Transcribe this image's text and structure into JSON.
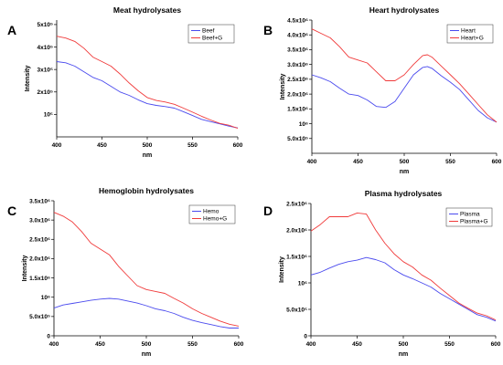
{
  "colors": {
    "series1": "#4a4aee",
    "series2": "#f03a3a"
  },
  "chart_data": [
    {
      "panel": "A",
      "type": "line",
      "title": "Meat hydrolysates",
      "xlabel": "nm",
      "ylabel": "Intensity",
      "xlim": [
        400,
        600
      ],
      "ylim": [
        0,
        520000
      ],
      "x_ticks": [
        "400",
        "450",
        "500",
        "550",
        "600"
      ],
      "y_ticks": [
        {
          "label": "10⁵",
          "value": 100000
        },
        {
          "label": "2x10⁵",
          "value": 200000
        },
        {
          "label": "3x10⁵",
          "value": 300000
        },
        {
          "label": "4x10⁵",
          "value": 400000
        },
        {
          "label": "5x10⁵",
          "value": 500000
        }
      ],
      "legend_position": "top-right",
      "series": [
        {
          "name": "Beef",
          "color": "#4a4aee",
          "points": [
            [
              400,
              335000
            ],
            [
              410,
              330000
            ],
            [
              420,
              315000
            ],
            [
              430,
              290000
            ],
            [
              440,
              265000
            ],
            [
              450,
              250000
            ],
            [
              460,
              225000
            ],
            [
              470,
              200000
            ],
            [
              480,
              185000
            ],
            [
              490,
              165000
            ],
            [
              500,
              148000
            ],
            [
              510,
              140000
            ],
            [
              520,
              135000
            ],
            [
              530,
              128000
            ],
            [
              540,
              112000
            ],
            [
              550,
              95000
            ],
            [
              560,
              78000
            ],
            [
              570,
              68000
            ],
            [
              580,
              58000
            ],
            [
              590,
              48000
            ],
            [
              600,
              40000
            ]
          ]
        },
        {
          "name": "Beef+G",
          "color": "#f03a3a",
          "points": [
            [
              400,
              448000
            ],
            [
              410,
              440000
            ],
            [
              420,
              425000
            ],
            [
              430,
              395000
            ],
            [
              440,
              355000
            ],
            [
              450,
              335000
            ],
            [
              460,
              315000
            ],
            [
              470,
              280000
            ],
            [
              480,
              240000
            ],
            [
              490,
              205000
            ],
            [
              500,
              175000
            ],
            [
              510,
              162000
            ],
            [
              520,
              155000
            ],
            [
              530,
              145000
            ],
            [
              540,
              128000
            ],
            [
              550,
              110000
            ],
            [
              560,
              92000
            ],
            [
              570,
              75000
            ],
            [
              580,
              60000
            ],
            [
              590,
              52000
            ],
            [
              600,
              38000
            ]
          ]
        }
      ]
    },
    {
      "panel": "B",
      "type": "line",
      "title": "Heart hydrolysates",
      "xlabel": "nm",
      "ylabel": "Intensity",
      "xlim": [
        400,
        600
      ],
      "ylim": [
        0,
        4500000
      ],
      "x_ticks": [
        "400",
        "450",
        "500",
        "550",
        "600"
      ],
      "y_ticks": [
        {
          "label": "5.0x10⁵",
          "value": 500000
        },
        {
          "label": "10⁶",
          "value": 1000000
        },
        {
          "label": "1.5x10⁶",
          "value": 1500000
        },
        {
          "label": "2.0x10⁶",
          "value": 2000000
        },
        {
          "label": "2.5x10⁶",
          "value": 2500000
        },
        {
          "label": "3.0x10⁶",
          "value": 3000000
        },
        {
          "label": "3.5x10⁶",
          "value": 3500000
        },
        {
          "label": "4.0x10⁶",
          "value": 4000000
        },
        {
          "label": "4.5x10⁶",
          "value": 4500000
        }
      ],
      "legend_position": "top-right",
      "series": [
        {
          "name": "Heart",
          "color": "#4a4aee",
          "points": [
            [
              400,
              2650000
            ],
            [
              410,
              2550000
            ],
            [
              420,
              2420000
            ],
            [
              430,
              2200000
            ],
            [
              440,
              2000000
            ],
            [
              450,
              1950000
            ],
            [
              460,
              1800000
            ],
            [
              470,
              1580000
            ],
            [
              480,
              1550000
            ],
            [
              490,
              1750000
            ],
            [
              500,
              2200000
            ],
            [
              510,
              2650000
            ],
            [
              520,
              2900000
            ],
            [
              525,
              2930000
            ],
            [
              530,
              2870000
            ],
            [
              540,
              2620000
            ],
            [
              550,
              2400000
            ],
            [
              560,
              2150000
            ],
            [
              570,
              1800000
            ],
            [
              580,
              1450000
            ],
            [
              590,
              1200000
            ],
            [
              600,
              1050000
            ]
          ]
        },
        {
          "name": "Heart+G",
          "color": "#f03a3a",
          "points": [
            [
              400,
              4200000
            ],
            [
              410,
              4050000
            ],
            [
              420,
              3900000
            ],
            [
              430,
              3600000
            ],
            [
              440,
              3250000
            ],
            [
              450,
              3150000
            ],
            [
              460,
              3050000
            ],
            [
              470,
              2750000
            ],
            [
              480,
              2450000
            ],
            [
              490,
              2450000
            ],
            [
              500,
              2650000
            ],
            [
              510,
              3000000
            ],
            [
              520,
              3300000
            ],
            [
              525,
              3330000
            ],
            [
              530,
              3250000
            ],
            [
              540,
              2950000
            ],
            [
              550,
              2650000
            ],
            [
              560,
              2350000
            ],
            [
              570,
              2000000
            ],
            [
              580,
              1650000
            ],
            [
              590,
              1300000
            ],
            [
              600,
              1050000
            ]
          ]
        }
      ]
    },
    {
      "panel": "C",
      "type": "line",
      "title": "Hemoglobin hydrolysates",
      "xlabel": "nm",
      "ylabel": "Intensity",
      "xlim": [
        400,
        600
      ],
      "ylim": [
        0,
        3500000
      ],
      "x_ticks": [
        "400",
        "450",
        "500",
        "550",
        "600"
      ],
      "y_ticks": [
        {
          "label": "0",
          "value": 0
        },
        {
          "label": "5.0x10⁵",
          "value": 500000
        },
        {
          "label": "10⁶",
          "value": 1000000
        },
        {
          "label": "1.5x10⁶",
          "value": 1500000
        },
        {
          "label": "2.0x10⁶",
          "value": 2000000
        },
        {
          "label": "2.5x10⁶",
          "value": 2500000
        },
        {
          "label": "3.0x10⁶",
          "value": 3000000
        },
        {
          "label": "3.5x10⁶",
          "value": 3500000
        }
      ],
      "legend_position": "top-right",
      "series": [
        {
          "name": "Hemo",
          "color": "#4a4aee",
          "points": [
            [
              400,
              720000
            ],
            [
              410,
              800000
            ],
            [
              420,
              840000
            ],
            [
              430,
              880000
            ],
            [
              440,
              920000
            ],
            [
              450,
              950000
            ],
            [
              460,
              970000
            ],
            [
              470,
              950000
            ],
            [
              480,
              900000
            ],
            [
              490,
              850000
            ],
            [
              500,
              780000
            ],
            [
              510,
              700000
            ],
            [
              520,
              650000
            ],
            [
              530,
              580000
            ],
            [
              540,
              480000
            ],
            [
              550,
              400000
            ],
            [
              560,
              340000
            ],
            [
              570,
              290000
            ],
            [
              580,
              240000
            ],
            [
              590,
              200000
            ],
            [
              600,
              200000
            ]
          ]
        },
        {
          "name": "Hemo+G",
          "color": "#f03a3a",
          "points": [
            [
              400,
              3200000
            ],
            [
              410,
              3100000
            ],
            [
              420,
              2950000
            ],
            [
              430,
              2700000
            ],
            [
              440,
              2400000
            ],
            [
              450,
              2250000
            ],
            [
              460,
              2100000
            ],
            [
              470,
              1800000
            ],
            [
              480,
              1550000
            ],
            [
              490,
              1300000
            ],
            [
              500,
              1200000
            ],
            [
              510,
              1150000
            ],
            [
              520,
              1100000
            ],
            [
              530,
              970000
            ],
            [
              540,
              850000
            ],
            [
              550,
              700000
            ],
            [
              560,
              580000
            ],
            [
              570,
              480000
            ],
            [
              580,
              380000
            ],
            [
              590,
              300000
            ],
            [
              600,
              250000
            ]
          ]
        }
      ]
    },
    {
      "panel": "D",
      "type": "line",
      "title": "Plasma hydrolysates",
      "xlabel": "nm",
      "ylabel": "Intensity",
      "xlim": [
        400,
        600
      ],
      "ylim": [
        0,
        2500000
      ],
      "x_ticks": [
        "400",
        "450",
        "500",
        "550",
        "600"
      ],
      "y_ticks": [
        {
          "label": "0",
          "value": 0
        },
        {
          "label": "5.0x10⁵",
          "value": 500000
        },
        {
          "label": "10⁶",
          "value": 1000000
        },
        {
          "label": "1.5x10⁶",
          "value": 1500000
        },
        {
          "label": "2.0x10⁶",
          "value": 2000000
        },
        {
          "label": "2.5x10⁶",
          "value": 2500000
        }
      ],
      "legend_position": "top-right",
      "series": [
        {
          "name": "Plasma",
          "color": "#4a4aee",
          "points": [
            [
              400,
              1150000
            ],
            [
              410,
              1200000
            ],
            [
              420,
              1280000
            ],
            [
              430,
              1350000
            ],
            [
              440,
              1400000
            ],
            [
              450,
              1430000
            ],
            [
              460,
              1480000
            ],
            [
              470,
              1440000
            ],
            [
              480,
              1380000
            ],
            [
              490,
              1250000
            ],
            [
              500,
              1150000
            ],
            [
              510,
              1080000
            ],
            [
              520,
              1000000
            ],
            [
              530,
              920000
            ],
            [
              540,
              800000
            ],
            [
              550,
              700000
            ],
            [
              560,
              600000
            ],
            [
              570,
              500000
            ],
            [
              580,
              400000
            ],
            [
              590,
              350000
            ],
            [
              600,
              280000
            ]
          ]
        },
        {
          "name": "Plasma+G",
          "color": "#f03a3a",
          "points": [
            [
              400,
              1980000
            ],
            [
              410,
              2100000
            ],
            [
              420,
              2250000
            ],
            [
              430,
              2250000
            ],
            [
              440,
              2250000
            ],
            [
              450,
              2320000
            ],
            [
              460,
              2300000
            ],
            [
              470,
              2000000
            ],
            [
              480,
              1750000
            ],
            [
              490,
              1550000
            ],
            [
              500,
              1400000
            ],
            [
              510,
              1300000
            ],
            [
              520,
              1150000
            ],
            [
              530,
              1050000
            ],
            [
              540,
              900000
            ],
            [
              550,
              760000
            ],
            [
              560,
              620000
            ],
            [
              570,
              520000
            ],
            [
              580,
              430000
            ],
            [
              590,
              380000
            ],
            [
              600,
              300000
            ]
          ]
        }
      ]
    }
  ]
}
